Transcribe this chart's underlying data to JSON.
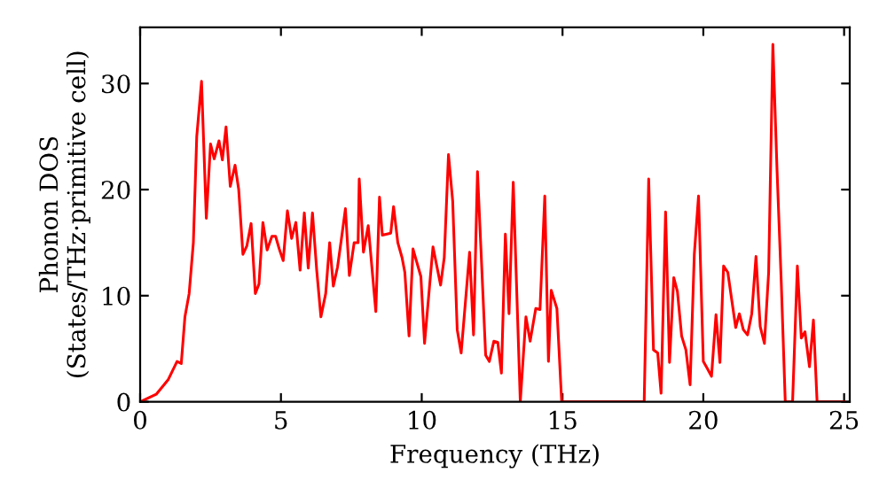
{
  "chart_data": {
    "type": "line",
    "xlabel": "Frequency (THz)",
    "ylabel": "Phonon DOS\n(States/THz·primitive cell)",
    "xlim": [
      0,
      25.2
    ],
    "ylim": [
      0,
      35.3
    ],
    "xticks": [
      0,
      5,
      10,
      15,
      20,
      25
    ],
    "yticks": [
      0,
      10,
      20,
      30
    ],
    "grid": false,
    "legend": false,
    "marker": "none",
    "line_style": "solid",
    "series": [
      {
        "color": "#ff0000",
        "x": [
          0,
          0.57,
          1.0,
          1.31,
          1.46,
          1.59,
          1.74,
          1.89,
          2.01,
          2.18,
          2.35,
          2.5,
          2.63,
          2.8,
          2.92,
          3.05,
          3.2,
          3.37,
          3.5,
          3.65,
          3.79,
          3.94,
          4.09,
          4.22,
          4.36,
          4.51,
          4.68,
          4.81,
          4.94,
          5.08,
          5.23,
          5.38,
          5.53,
          5.68,
          5.83,
          5.97,
          6.12,
          6.27,
          6.42,
          6.59,
          6.73,
          6.86,
          7.01,
          7.14,
          7.29,
          7.43,
          7.6,
          7.74,
          7.78,
          7.93,
          8.1,
          8.37,
          8.5,
          8.6,
          8.9,
          9.0,
          9.15,
          9.3,
          9.4,
          9.55,
          9.69,
          9.97,
          10.1,
          10.4,
          10.67,
          10.8,
          10.95,
          11.1,
          11.26,
          11.4,
          11.7,
          11.84,
          11.98,
          12.27,
          12.4,
          12.56,
          12.7,
          12.83,
          12.97,
          13.1,
          13.25,
          13.5,
          13.7,
          13.85,
          14.05,
          14.2,
          14.37,
          14.5,
          14.6,
          14.8,
          14.97,
          17.9,
          18.06,
          18.23,
          18.38,
          18.5,
          18.66,
          18.8,
          18.95,
          19.08,
          19.23,
          19.38,
          19.53,
          19.68,
          19.83,
          20.0,
          20.15,
          20.29,
          20.45,
          20.59,
          20.72,
          20.87,
          21.02,
          21.15,
          21.28,
          21.42,
          21.57,
          21.72,
          21.87,
          22.02,
          22.17,
          22.32,
          22.47,
          22.62,
          22.77,
          22.91,
          23.17,
          23.34,
          23.48,
          23.61,
          23.77,
          23.91,
          24.04,
          25.0
        ],
        "values": [
          0,
          0.7,
          2.1,
          3.8,
          3.6,
          8,
          10.2,
          15,
          25,
          30.2,
          17.3,
          24.3,
          22.9,
          24.6,
          22.8,
          25.9,
          20.3,
          22.3,
          20,
          13.9,
          14.7,
          16.8,
          10.2,
          11.1,
          16.9,
          14.3,
          15.6,
          15.6,
          14.4,
          13.3,
          18,
          15.4,
          16.9,
          12.4,
          17.8,
          12.6,
          17.8,
          12.4,
          8,
          10.2,
          15,
          10.9,
          12.7,
          15.2,
          18.2,
          11.9,
          15,
          15,
          21,
          14.1,
          16.6,
          8.5,
          19.3,
          15.7,
          15.9,
          18.4,
          15,
          13.6,
          12.2,
          6.2,
          14.4,
          11.8,
          5.5,
          14.6,
          11,
          13.6,
          23.3,
          18.9,
          6.8,
          4.6,
          14.1,
          6.3,
          21.7,
          4.4,
          3.8,
          5.7,
          5.6,
          2.7,
          15.8,
          8.3,
          20.7,
          0,
          8,
          5.7,
          8.8,
          8.7,
          19.4,
          3.8,
          10.5,
          8.8,
          0,
          0,
          21,
          4.9,
          4.6,
          0.8,
          17.9,
          3.7,
          11.7,
          10.4,
          6.2,
          4.9,
          1.6,
          13.9,
          19.4,
          3.8,
          3.1,
          2.4,
          8.2,
          3.7,
          12.8,
          12.2,
          9.4,
          7,
          8.3,
          6.8,
          6.3,
          8.3,
          13.7,
          7.1,
          5.5,
          12.2,
          33.7,
          21.7,
          11.1,
          0,
          0,
          12.8,
          6,
          6.6,
          3.3,
          7.7,
          0,
          0
        ]
      }
    ]
  }
}
